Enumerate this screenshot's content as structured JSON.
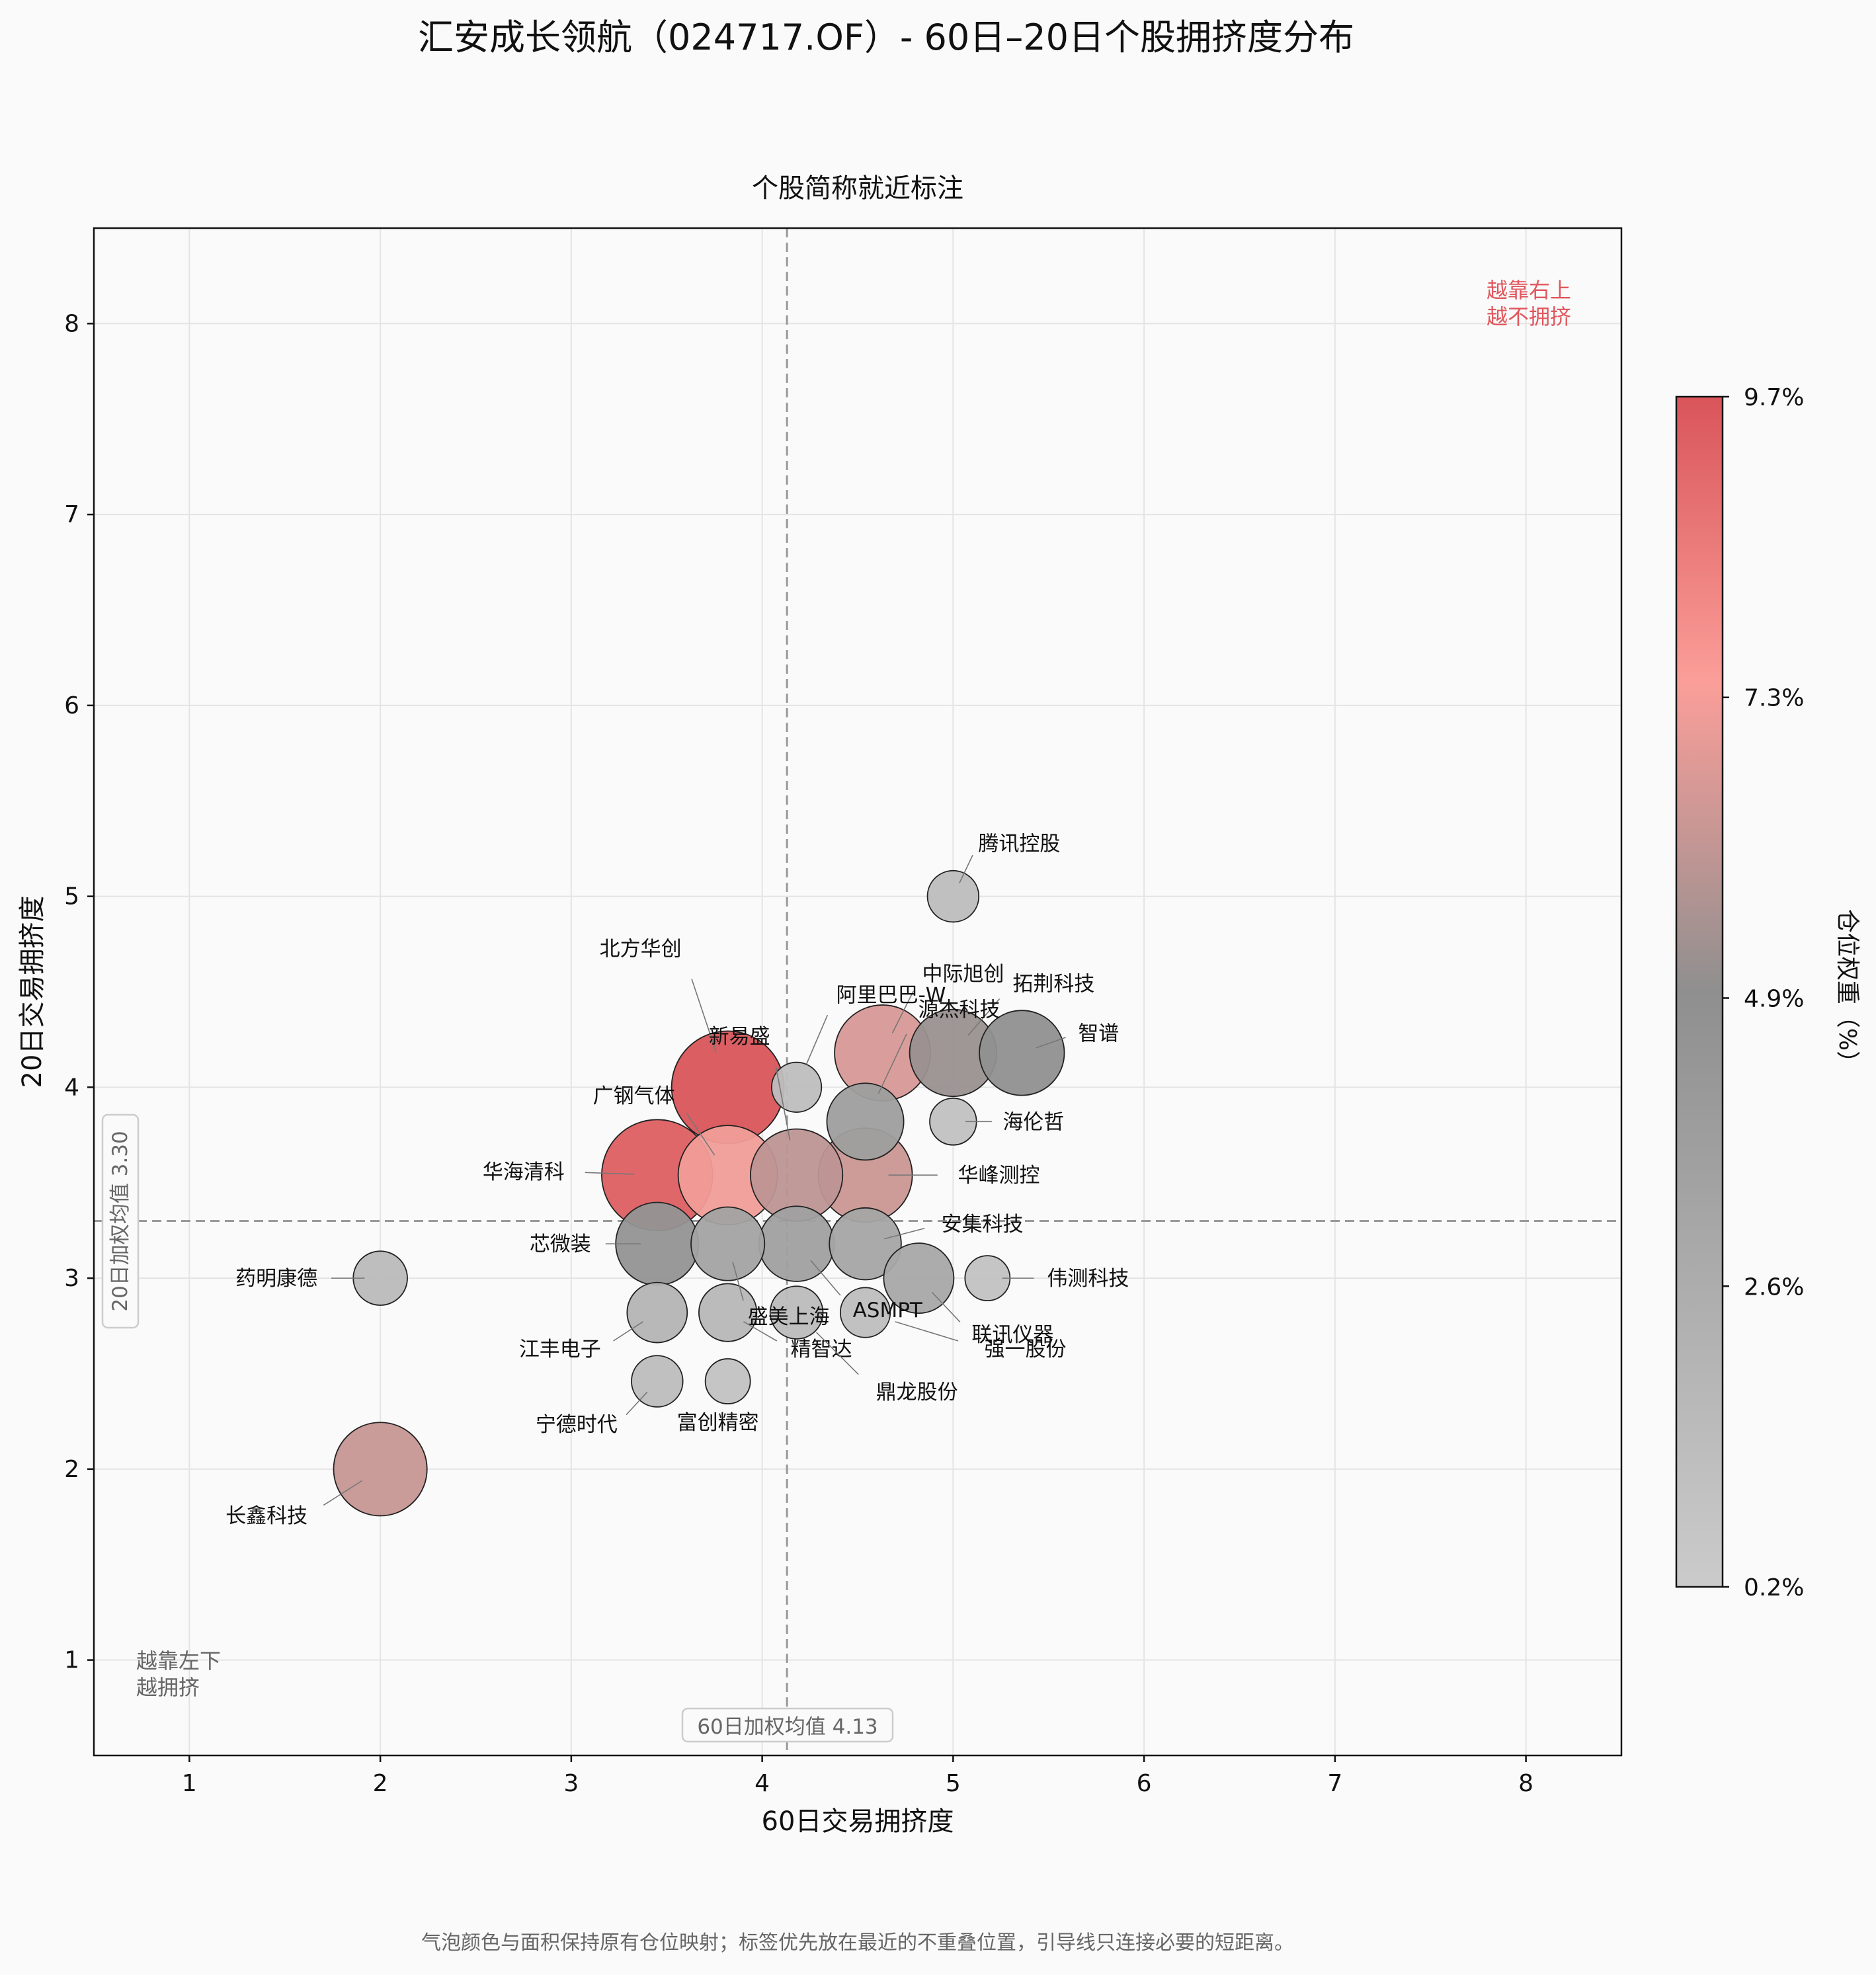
{
  "chart_data": {
    "type": "scatter",
    "title": "汇安成长领航（024717.OF）- 60日–20日个股拥挤度分布",
    "subtitle": "个股简称就近标注",
    "xlabel": "60日交易拥挤度",
    "ylabel": "20日交易拥挤度",
    "xlim": [
      0.5,
      8.5
    ],
    "ylim": [
      0.5,
      8.5
    ],
    "xticks": [
      "1",
      "2",
      "3",
      "4",
      "5",
      "6",
      "7",
      "8"
    ],
    "yticks": [
      "1",
      "2",
      "3",
      "4",
      "5",
      "6",
      "7",
      "8"
    ],
    "grid": true,
    "ref_x": 4.13,
    "ref_y": 3.3,
    "ref_x_label": "60日加权均值 4.13",
    "ref_y_label": "20日加权均值 3.30",
    "corner_top_right": [
      "越靠右上",
      "越不拥挤"
    ],
    "corner_bottom_left": [
      "越靠左下",
      "越拥挤"
    ],
    "colorbar": {
      "label": "仓位权重（%）",
      "min": 0.2,
      "max": 9.7,
      "ticks": [
        "0.2%",
        "2.6%",
        "4.9%",
        "7.3%",
        "9.7%"
      ],
      "tick_values": [
        0.2,
        2.6,
        4.9,
        7.3,
        9.7
      ],
      "colors": [
        "#cbcbcb",
        "#8f8f8f",
        "#fb9e99",
        "#d9555a"
      ]
    },
    "footnote": "气泡颜色与面积保持原有仓位映射；标签优先放在最近的不重叠位置，引导线只连接必要的短距离。",
    "points": [
      {
        "name": "北方华创",
        "x": 3.82,
        "y": 4.0,
        "weight": 9.7
      },
      {
        "name": "华海清科",
        "x": 3.45,
        "y": 3.54,
        "weight": 9.4
      },
      {
        "name": "广钢气体",
        "x": 3.82,
        "y": 3.54,
        "weight": 7.2
      },
      {
        "name": "长鑫科技",
        "x": 2.0,
        "y": 2.0,
        "weight": 6.2
      },
      {
        "name": "中际旭创",
        "x": 4.63,
        "y": 4.18,
        "weight": 6.6
      },
      {
        "name": "新易盛",
        "x": 4.18,
        "y": 3.54,
        "weight": 6.0
      },
      {
        "name": "华峰测控",
        "x": 4.54,
        "y": 3.54,
        "weight": 6.3
      },
      {
        "name": "拓荆科技",
        "x": 5.0,
        "y": 4.18,
        "weight": 5.2
      },
      {
        "name": "智谱",
        "x": 5.36,
        "y": 4.18,
        "weight": 4.9
      },
      {
        "name": "芯微装",
        "x": 3.45,
        "y": 3.18,
        "weight": 4.6
      },
      {
        "name": "阿里巴巴-W",
        "x": 4.18,
        "y": 4.0,
        "weight": 1.2
      },
      {
        "name": "腾讯控股",
        "x": 5.0,
        "y": 5.0,
        "weight": 1.3
      },
      {
        "name": "海伦哲",
        "x": 5.0,
        "y": 3.82,
        "weight": 1.0
      },
      {
        "name": "药明康德",
        "x": 2.0,
        "y": 3.0,
        "weight": 1.5
      },
      {
        "name": "伟测科技",
        "x": 5.18,
        "y": 3.0,
        "weight": 0.9
      },
      {
        "name": "联讯仪器",
        "x": 4.82,
        "y": 3.0,
        "weight": 3.0
      },
      {
        "name": "安集科技",
        "x": 4.54,
        "y": 3.18,
        "weight": 3.2
      },
      {
        "name": "ASMPT",
        "x": 4.18,
        "y": 3.18,
        "weight": 3.6
      },
      {
        "name": "盛美上海",
        "x": 3.82,
        "y": 3.18,
        "weight": 3.4
      },
      {
        "name": "江丰电子",
        "x": 3.45,
        "y": 2.82,
        "weight": 2.0
      },
      {
        "name": "精智达",
        "x": 3.82,
        "y": 2.82,
        "weight": 1.8
      },
      {
        "name": "鼎龙股份",
        "x": 4.18,
        "y": 2.82,
        "weight": 1.4
      },
      {
        "name": "强一股份",
        "x": 4.54,
        "y": 2.82,
        "weight": 1.2
      },
      {
        "name": "宁德时代",
        "x": 3.45,
        "y": 2.46,
        "weight": 1.3
      },
      {
        "name": "富创精密",
        "x": 3.82,
        "y": 2.46,
        "weight": 0.9
      },
      {
        "name": "源杰科技",
        "x": 4.54,
        "y": 3.82,
        "weight": 3.8
      }
    ]
  }
}
